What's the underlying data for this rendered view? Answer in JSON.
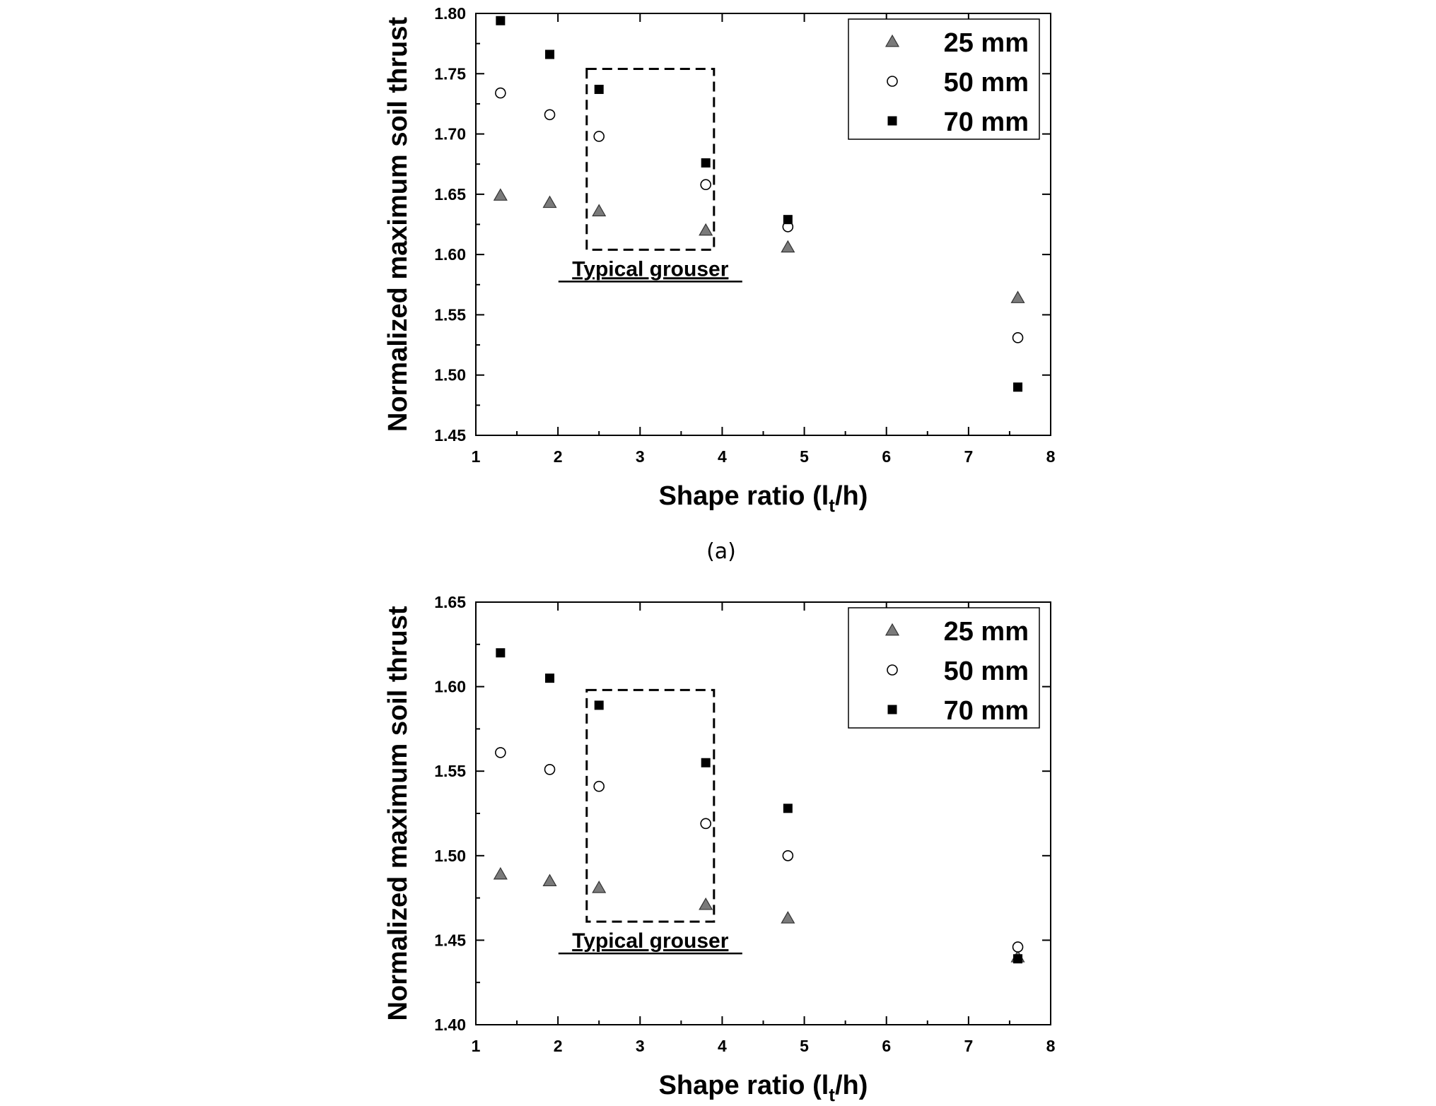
{
  "chart_data": [
    {
      "type": "scatter",
      "xlabel": "Shape ratio (l",
      "xlabel_sub": "t",
      "xlabel_end": "/h)",
      "ylabel": "Normalized maximum soil thrust",
      "xlim": [
        1,
        8
      ],
      "ylim": [
        1.45,
        1.8
      ],
      "xticks": [
        1,
        2,
        3,
        4,
        5,
        6,
        7,
        8
      ],
      "yticks": [
        1.45,
        1.5,
        1.55,
        1.6,
        1.65,
        1.7,
        1.75,
        1.8
      ],
      "ytick_labels": [
        "1.45",
        "1.50",
        "1.55",
        "1.60",
        "1.65",
        "1.70",
        "1.75",
        "1.80"
      ],
      "grid": false,
      "legend_position": "top-right",
      "series": [
        {
          "name": "25 mm",
          "marker": "triangle",
          "color": "#7a7a7a",
          "x": [
            1.3,
            1.9,
            2.5,
            3.8,
            4.8,
            7.6
          ],
          "y": [
            1.649,
            1.643,
            1.636,
            1.62,
            1.606,
            1.564
          ]
        },
        {
          "name": "50 mm",
          "marker": "circle-open",
          "color": "#ffffff",
          "x": [
            1.3,
            1.9,
            2.5,
            3.8,
            4.8,
            7.6
          ],
          "y": [
            1.734,
            1.716,
            1.698,
            1.658,
            1.623,
            1.531
          ]
        },
        {
          "name": "70 mm",
          "marker": "square",
          "color": "#000000",
          "x": [
            1.3,
            1.9,
            2.5,
            3.8,
            4.8,
            7.6
          ],
          "y": [
            1.794,
            1.766,
            1.737,
            1.676,
            1.629,
            1.49
          ]
        }
      ],
      "annotation": {
        "text": "Typical grouser",
        "box_x": [
          2.35,
          3.9
        ],
        "box_y": [
          1.604,
          1.754
        ]
      },
      "caption": "(a)"
    },
    {
      "type": "scatter",
      "xlabel": "Shape ratio (l",
      "xlabel_sub": "t",
      "xlabel_end": "/h)",
      "ylabel": "Normalized maximum soil thrust",
      "xlim": [
        1,
        8
      ],
      "ylim": [
        1.4,
        1.65
      ],
      "xticks": [
        1,
        2,
        3,
        4,
        5,
        6,
        7,
        8
      ],
      "yticks": [
        1.4,
        1.45,
        1.5,
        1.55,
        1.6,
        1.65
      ],
      "ytick_labels": [
        "1.40",
        "1.45",
        "1.50",
        "1.55",
        "1.60",
        "1.65"
      ],
      "grid": false,
      "legend_position": "top-right",
      "series": [
        {
          "name": "25 mm",
          "marker": "triangle",
          "color": "#7a7a7a",
          "x": [
            1.3,
            1.9,
            2.5,
            3.8,
            4.8,
            7.6
          ],
          "y": [
            1.489,
            1.485,
            1.481,
            1.471,
            1.463,
            1.44
          ]
        },
        {
          "name": "50 mm",
          "marker": "circle-open",
          "color": "#ffffff",
          "x": [
            1.3,
            1.9,
            2.5,
            3.8,
            4.8,
            7.6
          ],
          "y": [
            1.561,
            1.551,
            1.541,
            1.519,
            1.5,
            1.446
          ]
        },
        {
          "name": "70 mm",
          "marker": "square",
          "color": "#000000",
          "x": [
            1.3,
            1.9,
            2.5,
            3.8,
            4.8,
            7.6
          ],
          "y": [
            1.62,
            1.605,
            1.589,
            1.555,
            1.528,
            1.439
          ]
        }
      ],
      "annotation": {
        "text": "Typical grouser",
        "box_x": [
          2.35,
          3.9
        ],
        "box_y": [
          1.461,
          1.598
        ]
      },
      "caption": ""
    }
  ]
}
